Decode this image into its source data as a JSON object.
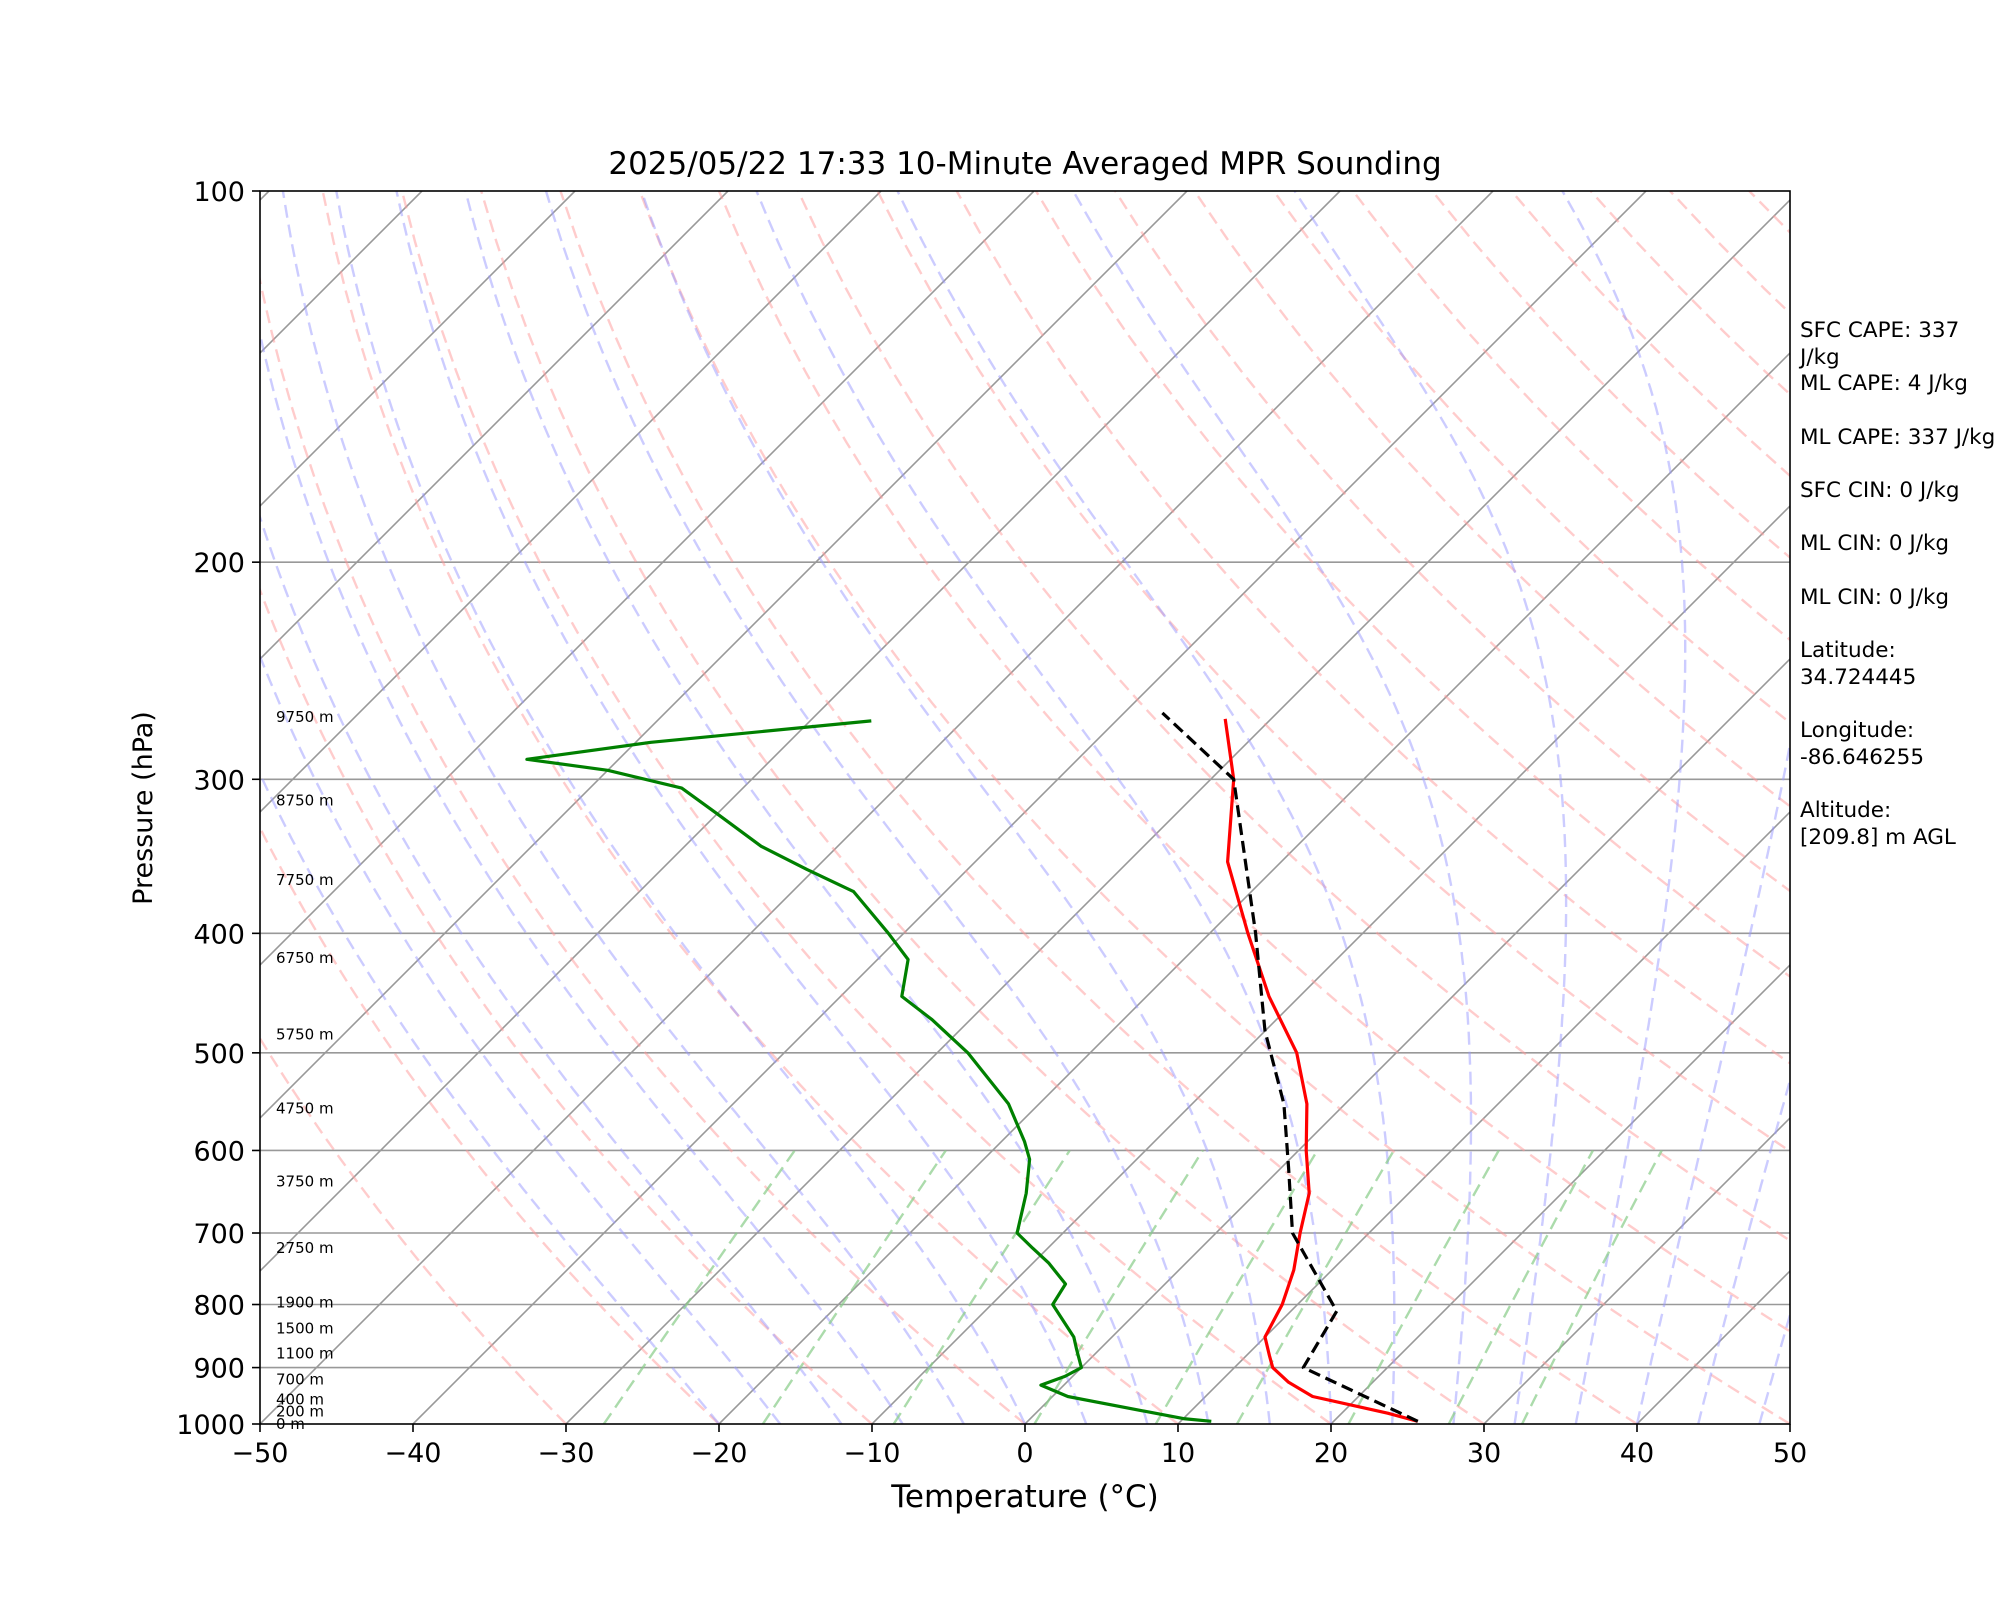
{
  "chart_data": {
    "type": "line",
    "subtype": "skew-t log-p sounding",
    "title": "2025/05/22 17:33 10-Minute Averaged MPR Sounding",
    "xlabel": "Temperature (°C)",
    "ylabel": "Pressure (hPa)",
    "xlim": [
      -50,
      50
    ],
    "ylim": [
      1000,
      100
    ],
    "y_scale": "log",
    "x_ticks": [
      "−50",
      "−40",
      "−30",
      "−20",
      "−10",
      "0",
      "10",
      "20",
      "30",
      "40",
      "50"
    ],
    "y_ticks": [
      "100",
      "200",
      "300",
      "400",
      "500",
      "600",
      "700",
      "800",
      "900",
      "1000"
    ],
    "grid": true,
    "height_labels": [
      {
        "p": 1000,
        "text": "0 m"
      },
      {
        "p": 977,
        "text": "200 m"
      },
      {
        "p": 955,
        "text": "400 m"
      },
      {
        "p": 920,
        "text": "700 m"
      },
      {
        "p": 877,
        "text": "1100 m"
      },
      {
        "p": 837,
        "text": "1500 m"
      },
      {
        "p": 797,
        "text": "1900 m"
      },
      {
        "p": 720,
        "text": "2750 m"
      },
      {
        "p": 636,
        "text": "3750 m"
      },
      {
        "p": 555,
        "text": "4750 m"
      },
      {
        "p": 483,
        "text": "5750 m"
      },
      {
        "p": 419,
        "text": "6750 m"
      },
      {
        "p": 362,
        "text": "7750 m"
      },
      {
        "p": 312,
        "text": "8750 m"
      },
      {
        "p": 267,
        "text": "9750 m"
      }
    ],
    "series": [
      {
        "kind": "temperature",
        "color": "#ff0000",
        "style": "solid",
        "points": [
          [
            25.5,
            995
          ],
          [
            23.0,
            980
          ],
          [
            17.0,
            950
          ],
          [
            14.5,
            925
          ],
          [
            12.5,
            900
          ],
          [
            11.5,
            880
          ],
          [
            10.0,
            850
          ],
          [
            9.0,
            800
          ],
          [
            7.5,
            750
          ],
          [
            5.5,
            700
          ],
          [
            3.5,
            650
          ],
          [
            0.5,
            600
          ],
          [
            -2.5,
            550
          ],
          [
            -6.5,
            500
          ],
          [
            -12.0,
            450
          ],
          [
            -17.5,
            400
          ],
          [
            -23.5,
            350
          ],
          [
            -28.5,
            300
          ],
          [
            -33.0,
            268
          ]
        ]
      },
      {
        "kind": "dewpoint",
        "color": "#008000",
        "style": "solid",
        "points": [
          [
            12.0,
            995
          ],
          [
            10.0,
            990
          ],
          [
            1.0,
            950
          ],
          [
            -1.5,
            930
          ],
          [
            -0.5,
            915
          ],
          [
            0.0,
            900
          ],
          [
            -1.5,
            870
          ],
          [
            -2.5,
            850
          ],
          [
            -6.0,
            800
          ],
          [
            -6.5,
            770
          ],
          [
            -9.0,
            740
          ],
          [
            -11.0,
            720
          ],
          [
            -13.0,
            700
          ],
          [
            -15.0,
            650
          ],
          [
            -17.0,
            610
          ],
          [
            -18.5,
            590
          ],
          [
            -22.0,
            550
          ],
          [
            -28.0,
            500
          ],
          [
            -32.5,
            470
          ],
          [
            -36.0,
            450
          ],
          [
            -38.0,
            420
          ],
          [
            -41.0,
            400
          ],
          [
            -46.0,
            370
          ],
          [
            -50.5,
            355
          ],
          [
            -55.0,
            340
          ],
          [
            -60.0,
            320
          ],
          [
            -64.0,
            305
          ],
          [
            -70.0,
            295
          ],
          [
            -76.0,
            289
          ],
          [
            -69.0,
            280
          ],
          [
            -56.0,
            269
          ]
        ]
      },
      {
        "kind": "parcel",
        "color": "#000000",
        "style": "dashed",
        "points": [
          [
            25.5,
            995
          ],
          [
            14.5,
            900
          ],
          [
            13.0,
            810
          ],
          [
            5.0,
            700
          ],
          [
            0.5,
            620
          ],
          [
            -4.0,
            550
          ],
          [
            -10.0,
            480
          ],
          [
            -17.0,
            400
          ],
          [
            -28.5,
            300
          ],
          [
            -37.5,
            265
          ]
        ]
      }
    ]
  },
  "indices": {
    "sfc_cape": "SFC CAPE: 337 J/kg",
    "ml_cape_1": "ML CAPE: 4 J/kg",
    "ml_cape_2": "ML CAPE: 337 J/kg",
    "sfc_cin": "SFC CIN: 0 J/kg",
    "ml_cin_1": "ML CIN: 0 J/kg",
    "ml_cin_2": "ML CIN: 0 J/kg"
  },
  "location": {
    "latitude": "Latitude:\n34.724445",
    "longitude": "Longitude:\n-86.646255",
    "altitude": "Altitude:\n[209.8] m AGL"
  },
  "colors": {
    "temperature": "#ff0000",
    "dewpoint": "#008000",
    "parcel": "#000000",
    "dry_adiabat": "#ff9999",
    "moist_adiabat": "#9999ff",
    "mixing_ratio": "#88cc88",
    "isotherm": "#999999",
    "isobar": "#999999"
  }
}
